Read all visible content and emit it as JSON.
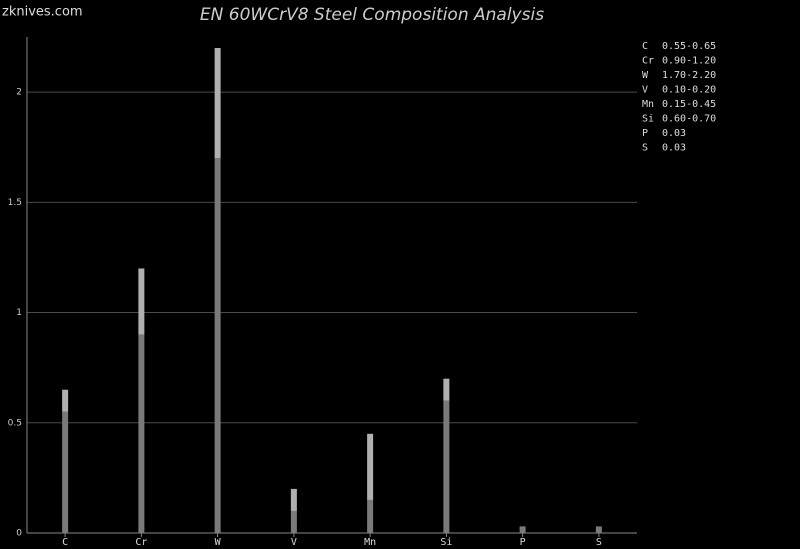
{
  "watermark": "zknives.com",
  "chart_data": {
    "type": "range_bar",
    "title": "EN 60WCrV8 Steel Composition Analysis",
    "categories": [
      "C",
      "Cr",
      "W",
      "V",
      "Mn",
      "Si",
      "P",
      "S"
    ],
    "min": [
      0.55,
      0.9,
      1.7,
      0.1,
      0.15,
      0.6,
      0.03,
      0.03
    ],
    "max": [
      0.65,
      1.2,
      2.2,
      0.2,
      0.45,
      0.7,
      0.03,
      0.03
    ],
    "range_labels": [
      "0.55-0.65",
      "0.90-1.20",
      "1.70-2.20",
      "0.10-0.20",
      "0.15-0.45",
      "0.60-0.70",
      "0.03",
      "0.03"
    ],
    "min_color": "#7a7a7a",
    "max_color": "#b0b0b0",
    "ylim": [
      0,
      2.25
    ],
    "yticks": [
      0,
      0.5,
      1,
      1.5,
      2
    ],
    "grid": true
  }
}
